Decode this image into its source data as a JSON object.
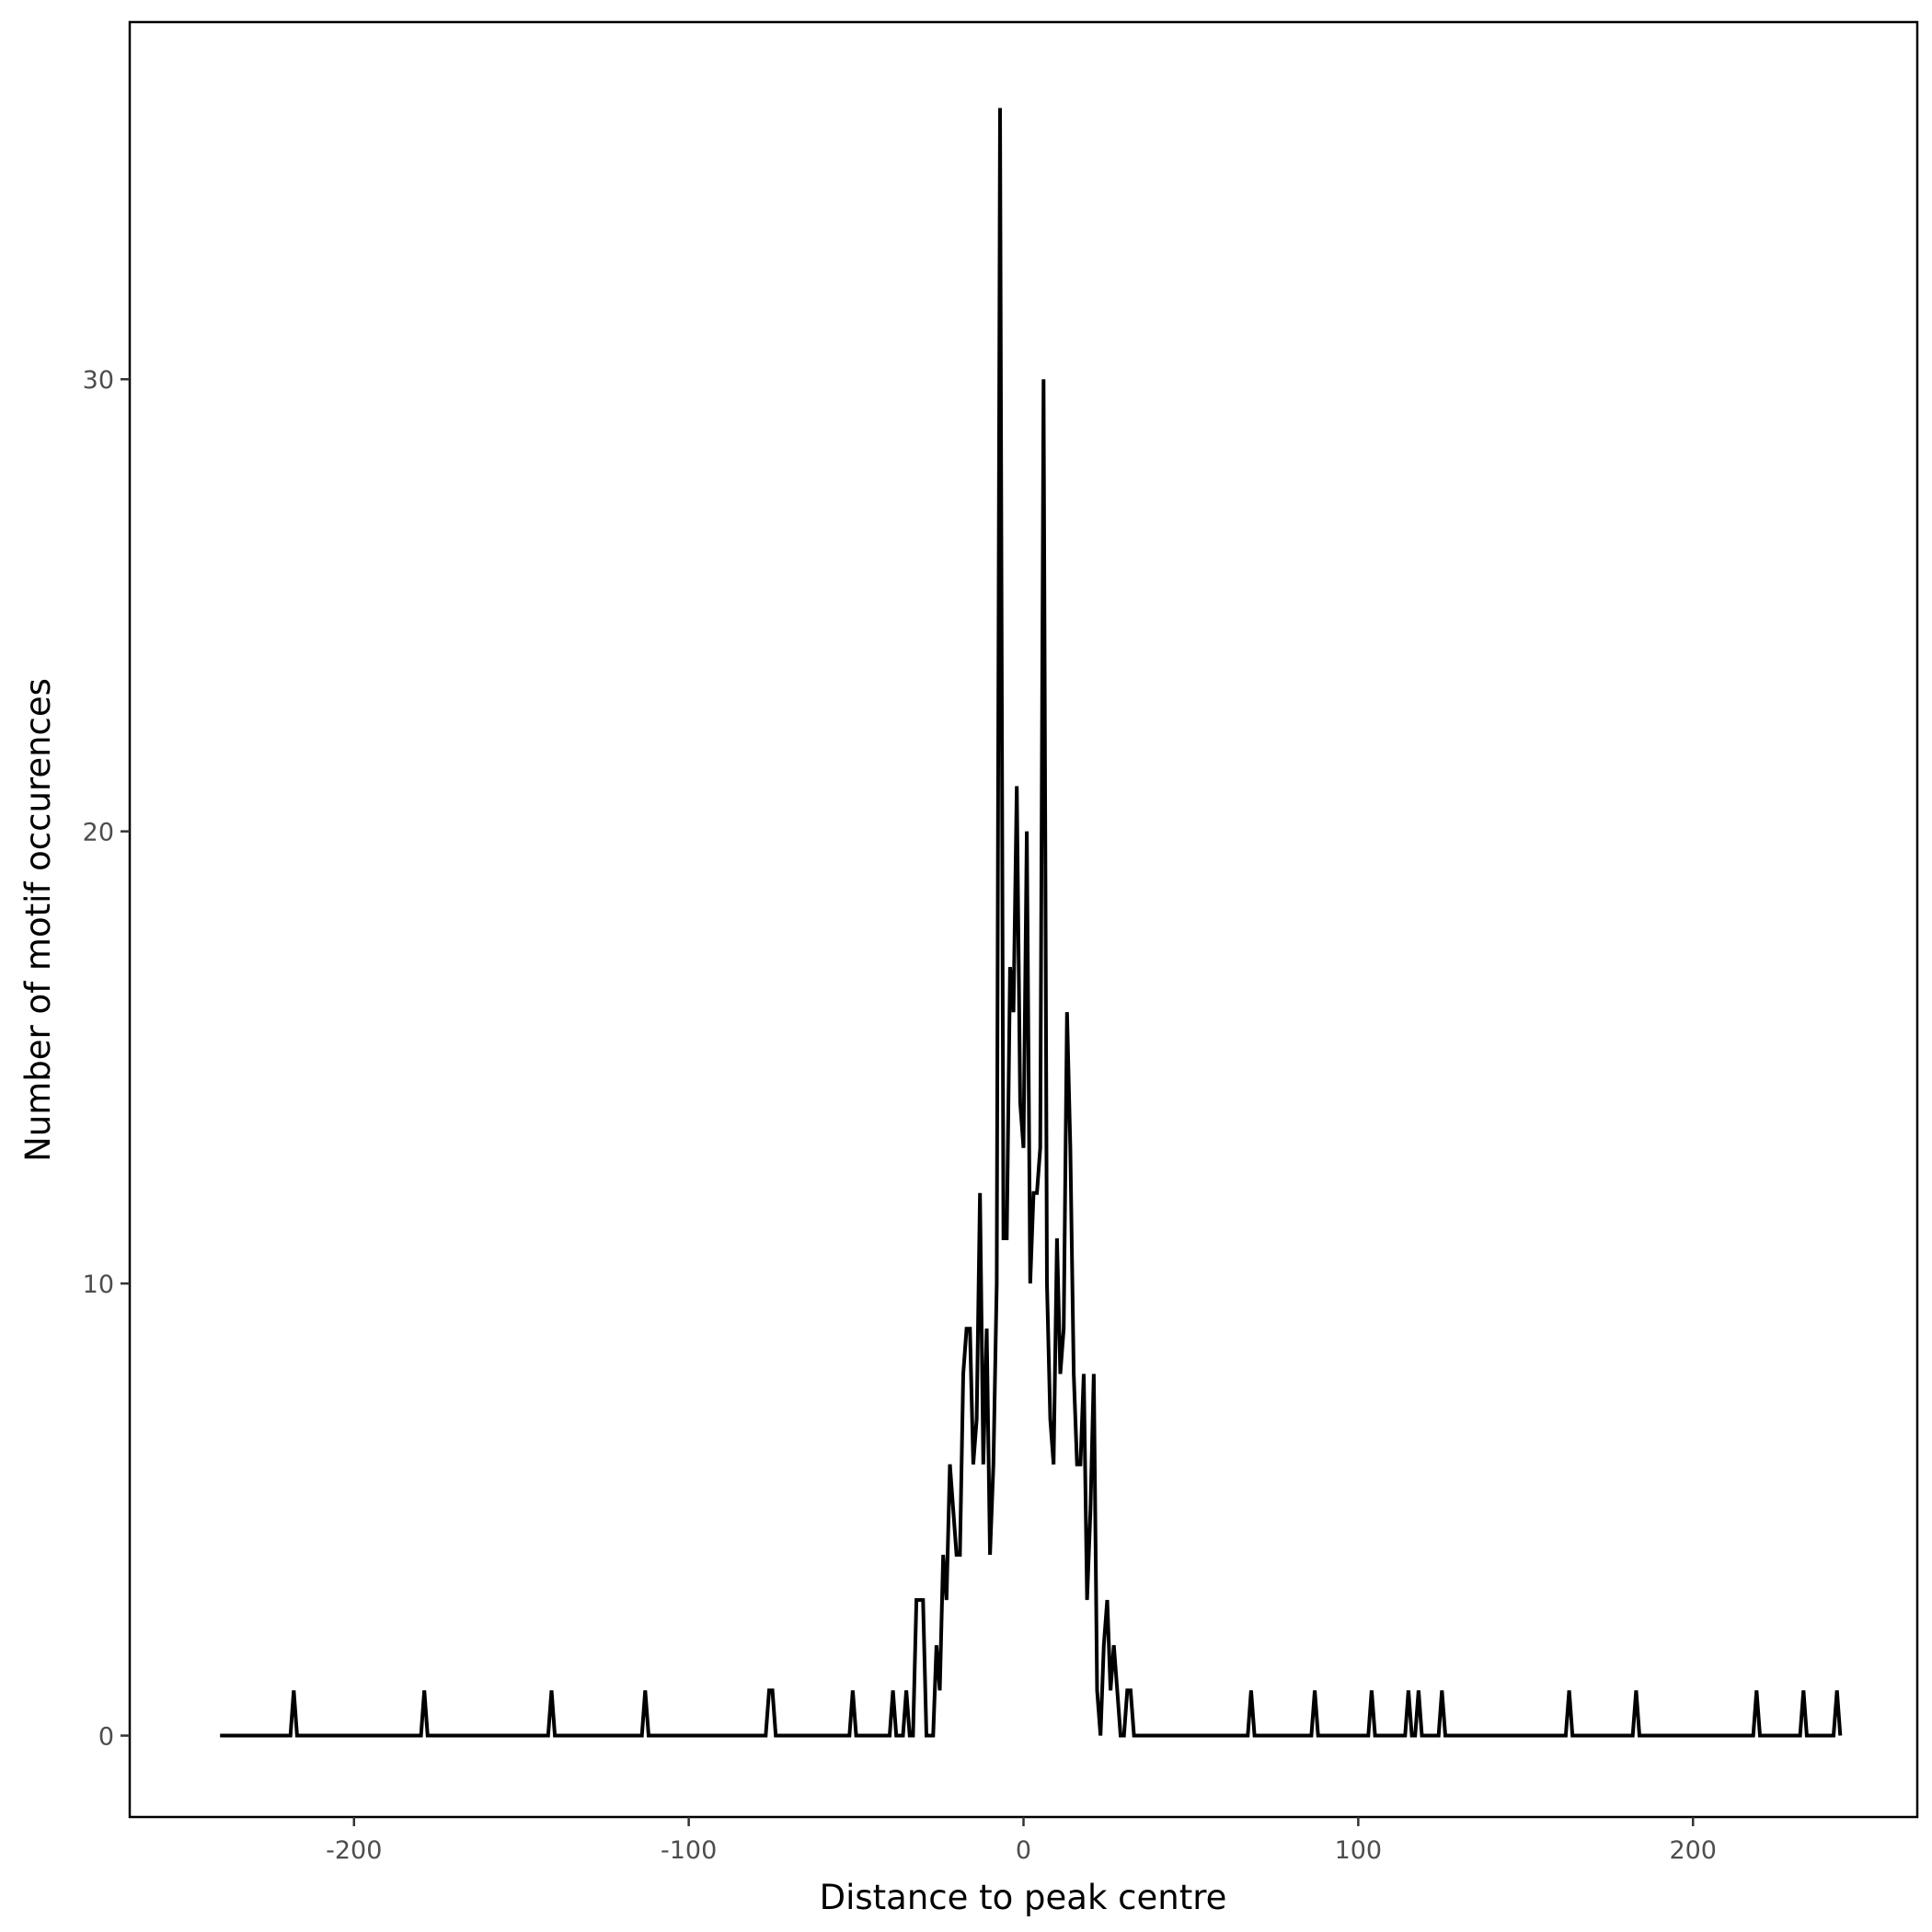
{
  "chart_data": {
    "type": "line",
    "title": "",
    "xlabel": "Distance to peak centre",
    "ylabel": "Number of motif occurences",
    "xlim": [
      -267,
      267
    ],
    "ylim": [
      -1.8,
      37.9
    ],
    "xticks": [
      -200,
      -100,
      0,
      100,
      200
    ],
    "xtick_labels": [
      "-200",
      "-100",
      "0",
      "100",
      "200"
    ],
    "yticks": [
      0,
      10,
      20,
      30
    ],
    "ytick_labels": [
      "0",
      "10",
      "20",
      "30"
    ],
    "grid": false,
    "line_color": "#000000",
    "points": [
      [
        -240,
        0
      ],
      [
        -219,
        0
      ],
      [
        -218,
        1
      ],
      [
        -217,
        0
      ],
      [
        -180,
        0
      ],
      [
        -179,
        1
      ],
      [
        -178,
        0
      ],
      [
        -142,
        0
      ],
      [
        -141,
        1
      ],
      [
        -140,
        0
      ],
      [
        -114,
        0
      ],
      [
        -113,
        1
      ],
      [
        -112,
        0
      ],
      [
        -77,
        0
      ],
      [
        -76,
        1
      ],
      [
        -75,
        1
      ],
      [
        -74,
        0
      ],
      [
        -52,
        0
      ],
      [
        -51,
        1
      ],
      [
        -50,
        0
      ],
      [
        -40,
        0
      ],
      [
        -39,
        1
      ],
      [
        -38,
        0
      ],
      [
        -37,
        0
      ],
      [
        -36,
        0
      ],
      [
        -35,
        1
      ],
      [
        -34,
        0
      ],
      [
        -33,
        0
      ],
      [
        -32,
        3
      ],
      [
        -31,
        3
      ],
      [
        -30,
        3
      ],
      [
        -29,
        0
      ],
      [
        -28,
        0
      ],
      [
        -27,
        0
      ],
      [
        -26,
        2
      ],
      [
        -25,
        1
      ],
      [
        -24,
        4
      ],
      [
        -23,
        3
      ],
      [
        -22,
        6
      ],
      [
        -21,
        5
      ],
      [
        -20,
        4
      ],
      [
        -19,
        4
      ],
      [
        -18,
        8
      ],
      [
        -17,
        9
      ],
      [
        -16,
        9
      ],
      [
        -15,
        6
      ],
      [
        -14,
        7
      ],
      [
        -13,
        12
      ],
      [
        -12,
        6
      ],
      [
        -11,
        9
      ],
      [
        -10,
        4
      ],
      [
        -9,
        6
      ],
      [
        -8,
        10
      ],
      [
        -7,
        36
      ],
      [
        -6,
        11
      ],
      [
        -5,
        11
      ],
      [
        -4,
        17
      ],
      [
        -3,
        16
      ],
      [
        -2,
        21
      ],
      [
        -1,
        14
      ],
      [
        0,
        13
      ],
      [
        1,
        20
      ],
      [
        2,
        10
      ],
      [
        3,
        12
      ],
      [
        4,
        12
      ],
      [
        5,
        13
      ],
      [
        6,
        30
      ],
      [
        7,
        10
      ],
      [
        8,
        7
      ],
      [
        9,
        6
      ],
      [
        10,
        11
      ],
      [
        11,
        8
      ],
      [
        12,
        9
      ],
      [
        13,
        16
      ],
      [
        14,
        13
      ],
      [
        15,
        8
      ],
      [
        16,
        6
      ],
      [
        17,
        6
      ],
      [
        18,
        8
      ],
      [
        19,
        3
      ],
      [
        20,
        5
      ],
      [
        21,
        8
      ],
      [
        22,
        1
      ],
      [
        23,
        0
      ],
      [
        24,
        2
      ],
      [
        25,
        3
      ],
      [
        26,
        1
      ],
      [
        27,
        2
      ],
      [
        28,
        1
      ],
      [
        29,
        0
      ],
      [
        30,
        0
      ],
      [
        31,
        1
      ],
      [
        32,
        1
      ],
      [
        33,
        0
      ],
      [
        67,
        0
      ],
      [
        68,
        1
      ],
      [
        69,
        0
      ],
      [
        86,
        0
      ],
      [
        87,
        1
      ],
      [
        88,
        0
      ],
      [
        103,
        0
      ],
      [
        104,
        1
      ],
      [
        105,
        0
      ],
      [
        114,
        0
      ],
      [
        115,
        1
      ],
      [
        116,
        0
      ],
      [
        117,
        0
      ],
      [
        118,
        1
      ],
      [
        119,
        0
      ],
      [
        124,
        0
      ],
      [
        125,
        1
      ],
      [
        126,
        0
      ],
      [
        162,
        0
      ],
      [
        163,
        1
      ],
      [
        164,
        0
      ],
      [
        182,
        0
      ],
      [
        183,
        1
      ],
      [
        184,
        0
      ],
      [
        218,
        0
      ],
      [
        219,
        1
      ],
      [
        220,
        0
      ],
      [
        232,
        0
      ],
      [
        233,
        1
      ],
      [
        234,
        0
      ],
      [
        242,
        0
      ],
      [
        243,
        1
      ],
      [
        244,
        0
      ]
    ]
  }
}
